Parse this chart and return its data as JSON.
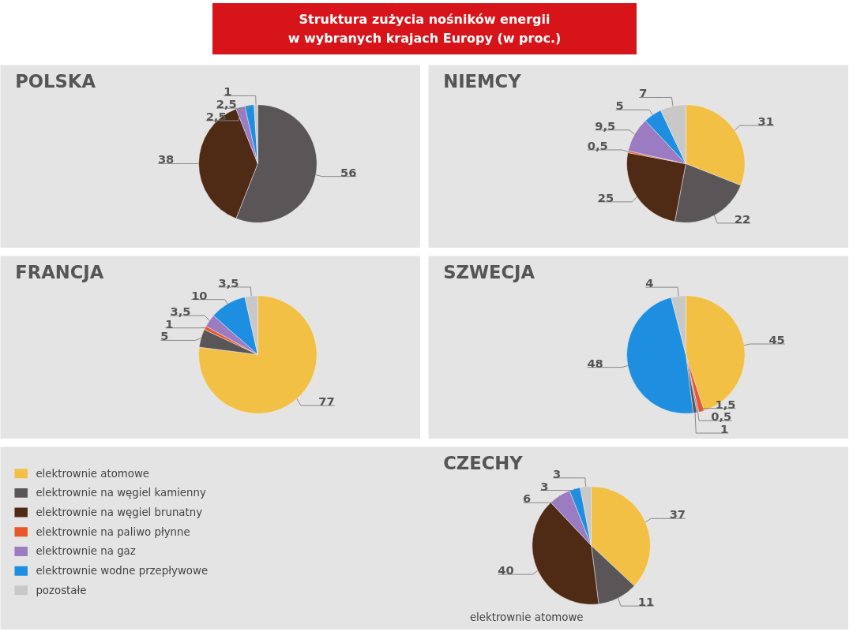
{
  "chart_data": [
    {
      "type": "other",
      "title": "Struktura zużycia nośników energii\nw wybranych krajach Europy (w proc.)"
    },
    {
      "type": "pie",
      "title": "POLSKA",
      "categories": [
        null,
        null,
        null,
        null,
        null,
        null,
        null
      ],
      "values": [
        0,
        56,
        38,
        0,
        2.5,
        2.5,
        1
      ],
      "colors": [
        "#f2c044",
        "#5a5556",
        "#4f2a15",
        "#e8562a",
        "#9b7bc2",
        "#1e8fe0",
        "#c8c8c8"
      ],
      "value_labels": [
        null,
        "56",
        "38",
        null,
        "2,5",
        "2,5",
        "1"
      ]
    },
    {
      "type": "pie",
      "title": "NIEMCY",
      "categories": [
        null,
        null,
        null,
        null,
        null,
        null,
        null
      ],
      "values": [
        31,
        22,
        25,
        0.5,
        9.5,
        5,
        7
      ],
      "colors": [
        "#f2c044",
        "#5a5556",
        "#4f2a15",
        "#e8562a",
        "#9b7bc2",
        "#1e8fe0",
        "#c8c8c8"
      ],
      "value_labels": [
        "31",
        "22",
        "25",
        "0,5",
        "9,5",
        "5",
        "7"
      ]
    },
    {
      "type": "pie",
      "title": "FRANCJA",
      "categories": [
        null,
        null,
        null,
        null,
        null,
        null,
        null
      ],
      "values": [
        77,
        5,
        0,
        1,
        3.5,
        10,
        3.5
      ],
      "colors": [
        "#f2c044",
        "#5a5556",
        "#4f2a15",
        "#e8562a",
        "#9b7bc2",
        "#1e8fe0",
        "#c8c8c8"
      ],
      "value_labels": [
        "77",
        "5",
        null,
        "1",
        "3,5",
        "10",
        "3,5"
      ]
    },
    {
      "type": "pie",
      "title": "SZWECJA",
      "categories": [
        null,
        null,
        null,
        null,
        null,
        null
      ],
      "values": [
        45,
        1.5,
        0.5,
        1,
        48,
        4
      ],
      "colors": [
        "#f2c044",
        "#e8562a",
        "#9b7bc2",
        "#5a5556",
        "#1e8fe0",
        "#c8c8c8"
      ],
      "value_labels": [
        "45",
        "1,5",
        "0,5",
        "1",
        "48",
        "4"
      ]
    },
    {
      "type": "pie",
      "title": "CZECHY",
      "categories": [
        "elektrownie atomowe",
        "elektrownie na węgiel kamienny",
        "elektrownie na węgiel brunatny",
        "elektrownie na paliwo płynne",
        "elektrownie na gaz",
        "elektrownie wodne przepływowe",
        "pozostałe"
      ],
      "values": [
        37,
        11,
        40,
        0,
        6,
        3,
        3
      ],
      "colors": [
        "#f2c044",
        "#5a5556",
        "#4f2a15",
        "#e8562a",
        "#9b7bc2",
        "#1e8fe0",
        "#c8c8c8"
      ],
      "value_labels": [
        "37",
        "11",
        "40",
        null,
        "6",
        "3",
        "3"
      ],
      "legend": "left",
      "annotations": [
        "elektrownie atomowe"
      ]
    }
  ]
}
